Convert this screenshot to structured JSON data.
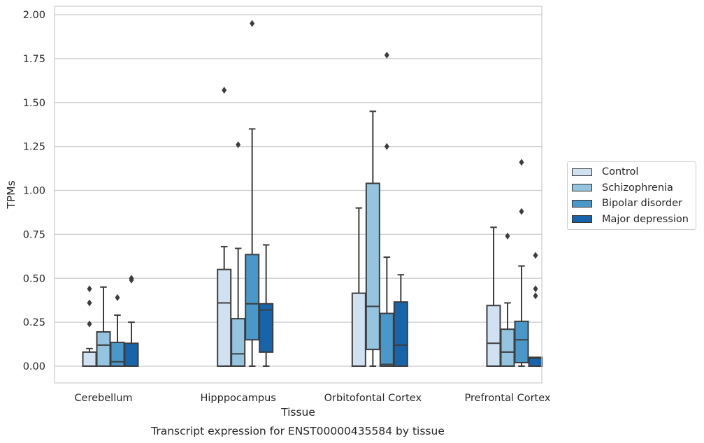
{
  "chart_data": {
    "type": "box",
    "title": "",
    "caption": "Transcript expression for ENST00000435584 by tissue",
    "xlabel": "Tissue",
    "ylabel": "TPMs",
    "ylim": [
      -0.1,
      2.05
    ],
    "yticks": [
      0.0,
      0.25,
      0.5,
      0.75,
      1.0,
      1.25,
      1.5,
      1.75,
      2.0
    ],
    "ytick_labels": [
      "0.00",
      "0.25",
      "0.50",
      "0.75",
      "1.00",
      "1.25",
      "1.50",
      "1.75",
      "2.00"
    ],
    "grid": true,
    "legend_position": "right",
    "categories": [
      "Cerebellum",
      "Hipppocampus",
      "Orbitofontal Cortex",
      "Prefrontal Cortex"
    ],
    "series": [
      {
        "name": "Control",
        "color": "#d0e1f2",
        "boxes": [
          {
            "whislo": 0.0,
            "q1": 0.0,
            "med": 0.0,
            "q3": 0.08,
            "whishi": 0.1,
            "fliers": [
              0.24,
              0.36,
              0.44
            ]
          },
          {
            "whislo": 0.0,
            "q1": 0.0,
            "med": 0.36,
            "q3": 0.55,
            "whishi": 0.68,
            "fliers": [
              1.57
            ]
          },
          {
            "whislo": 0.0,
            "q1": 0.0,
            "med": 0.0,
            "q3": 0.415,
            "whishi": 0.9,
            "fliers": []
          },
          {
            "whislo": 0.0,
            "q1": 0.0,
            "med": 0.13,
            "q3": 0.345,
            "whishi": 0.79,
            "fliers": []
          }
        ]
      },
      {
        "name": "Schizophrenia",
        "color": "#94c4df",
        "boxes": [
          {
            "whislo": 0.0,
            "q1": 0.0,
            "med": 0.12,
            "q3": 0.195,
            "whishi": 0.45,
            "fliers": []
          },
          {
            "whislo": 0.0,
            "q1": 0.0,
            "med": 0.07,
            "q3": 0.27,
            "whishi": 0.67,
            "fliers": [
              1.26
            ]
          },
          {
            "whislo": 0.0,
            "q1": 0.095,
            "med": 0.34,
            "q3": 1.04,
            "whishi": 1.45,
            "fliers": []
          },
          {
            "whislo": 0.0,
            "q1": 0.0,
            "med": 0.08,
            "q3": 0.21,
            "whishi": 0.36,
            "fliers": [
              0.74
            ]
          }
        ]
      },
      {
        "name": "Bipolar disorder",
        "color": "#4a98c9",
        "boxes": [
          {
            "whislo": 0.0,
            "q1": 0.0,
            "med": 0.025,
            "q3": 0.135,
            "whishi": 0.29,
            "fliers": [
              0.39
            ]
          },
          {
            "whislo": 0.0,
            "q1": 0.15,
            "med": 0.355,
            "q3": 0.635,
            "whishi": 1.35,
            "fliers": [
              1.95
            ]
          },
          {
            "whislo": 0.0,
            "q1": 0.0,
            "med": 0.01,
            "q3": 0.3,
            "whishi": 0.62,
            "fliers": [
              1.25,
              1.77
            ]
          },
          {
            "whislo": 0.0,
            "q1": 0.02,
            "med": 0.15,
            "q3": 0.255,
            "whishi": 0.57,
            "fliers": [
              0.88,
              1.16
            ]
          }
        ]
      },
      {
        "name": "Major depression",
        "color": "#1764ab",
        "boxes": [
          {
            "whislo": 0.0,
            "q1": 0.0,
            "med": 0.0,
            "q3": 0.13,
            "whishi": 0.25,
            "fliers": [
              0.49,
              0.5
            ]
          },
          {
            "whislo": 0.0,
            "q1": 0.08,
            "med": 0.32,
            "q3": 0.355,
            "whishi": 0.69,
            "fliers": []
          },
          {
            "whislo": 0.0,
            "q1": 0.0,
            "med": 0.12,
            "q3": 0.365,
            "whishi": 0.52,
            "fliers": []
          },
          {
            "whislo": 0.0,
            "q1": 0.0,
            "med": 0.045,
            "q3": 0.05,
            "whishi": 0.05,
            "fliers": [
              0.4,
              0.44,
              0.63
            ]
          }
        ]
      }
    ]
  }
}
